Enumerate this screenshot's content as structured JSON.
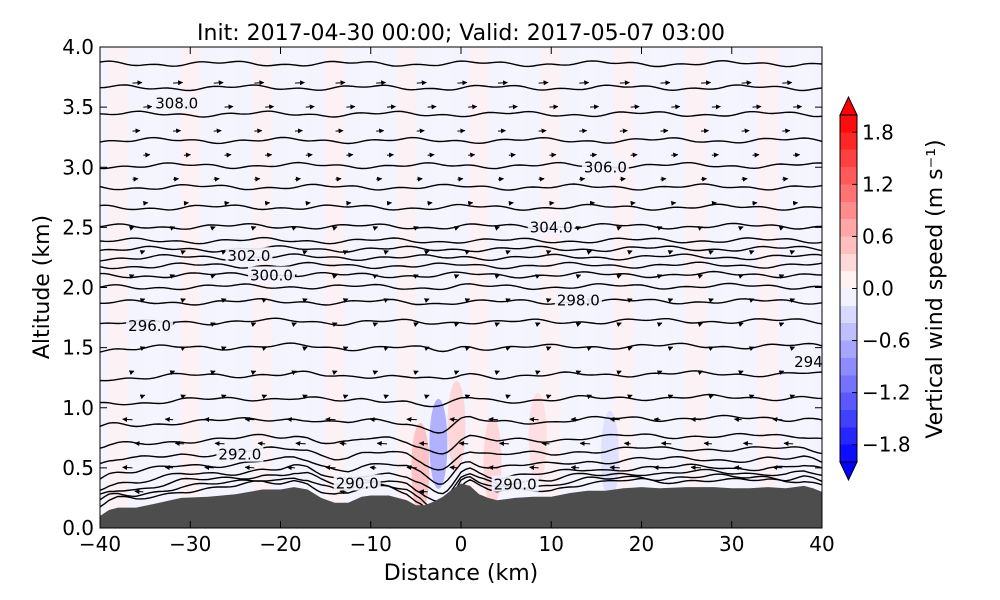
{
  "chart_data": {
    "type": "contour",
    "title": "Init: 2017-04-30 00:00; Valid: 2017-05-07 03:00",
    "xlabel": "Distance (km)",
    "ylabel": "Altitude (km)",
    "xlim": [
      -40,
      40
    ],
    "ylim": [
      0.0,
      4.0
    ],
    "x_ticks": [
      -40,
      -30,
      -20,
      -10,
      0,
      10,
      20,
      30,
      40
    ],
    "x_tick_labels": [
      "−40",
      "−30",
      "−20",
      "−10",
      "0",
      "10",
      "20",
      "30",
      "40"
    ],
    "y_ticks": [
      0.0,
      0.5,
      1.0,
      1.5,
      2.0,
      2.5,
      3.0,
      3.5,
      4.0
    ],
    "y_tick_labels": [
      "0.0",
      "0.5",
      "1.0",
      "1.5",
      "2.0",
      "2.5",
      "3.0",
      "3.5",
      "4.0"
    ],
    "filled_variable": "vertical wind speed",
    "colorbar": {
      "label": "Vertical wind speed (m s⁻¹)",
      "range": [
        -2.0,
        2.0
      ],
      "ticks": [
        1.8,
        1.2,
        0.6,
        0.0,
        -0.6,
        -1.2,
        -1.8
      ],
      "tick_labels": [
        "1.8",
        "1.2",
        "0.6",
        "0.0",
        "−0.6",
        "−1.2",
        "−1.8"
      ],
      "colormap": "bwr",
      "extend": "both",
      "low_color": "#0000ff",
      "high_color": "#ff0000"
    },
    "contour_labels": [
      {
        "text": "308.0",
        "x": -31.5,
        "y": 3.53
      },
      {
        "text": "306.0",
        "x": 16.0,
        "y": 3.0
      },
      {
        "text": "304.0",
        "x": 10.0,
        "y": 2.5
      },
      {
        "text": "302.0",
        "x": -23.5,
        "y": 2.26
      },
      {
        "text": "300.0",
        "x": -21.0,
        "y": 2.1
      },
      {
        "text": "298.0",
        "x": 13.0,
        "y": 1.89
      },
      {
        "text": "296.0",
        "x": -34.5,
        "y": 1.68
      },
      {
        "text": "294",
        "x": 38.5,
        "y": 1.38
      },
      {
        "text": "292.0",
        "x": -24.5,
        "y": 0.61
      },
      {
        "text": "290.0",
        "x": -11.5,
        "y": 0.37
      },
      {
        "text": "290.0",
        "x": 6.0,
        "y": 0.36
      }
    ],
    "terrain": {
      "color": "#4d4d4d",
      "x": [
        -40,
        -39,
        -38,
        -36,
        -34,
        -31,
        -28,
        -25,
        -22,
        -20,
        -18.5,
        -17,
        -15.5,
        -14,
        -12.5,
        -11,
        -10,
        -8,
        -6,
        -5,
        -4,
        -3,
        -2,
        -1,
        0,
        1,
        2,
        3,
        4,
        6,
        8,
        10,
        12,
        14,
        16,
        18,
        20,
        22,
        25,
        28,
        30,
        32,
        34,
        36,
        38,
        39,
        40
      ],
      "y": [
        0.1,
        0.15,
        0.17,
        0.17,
        0.2,
        0.25,
        0.26,
        0.28,
        0.32,
        0.32,
        0.34,
        0.32,
        0.25,
        0.21,
        0.21,
        0.26,
        0.27,
        0.27,
        0.23,
        0.19,
        0.19,
        0.22,
        0.26,
        0.32,
        0.37,
        0.35,
        0.28,
        0.25,
        0.23,
        0.25,
        0.26,
        0.26,
        0.29,
        0.31,
        0.31,
        0.33,
        0.34,
        0.33,
        0.34,
        0.34,
        0.33,
        0.33,
        0.34,
        0.33,
        0.35,
        0.33,
        0.3
      ]
    },
    "vertical_wind_anomalies": [
      {
        "x": -2.5,
        "y": 0.7,
        "value": -0.8
      },
      {
        "x": -4.5,
        "y": 0.5,
        "value": 0.6
      },
      {
        "x": -0.5,
        "y": 0.85,
        "value": 0.4
      },
      {
        "x": 3.5,
        "y": 0.55,
        "value": 0.4
      },
      {
        "x": 8.5,
        "y": 0.75,
        "value": 0.3
      },
      {
        "x": 16.5,
        "y": 0.6,
        "value": -0.3
      }
    ]
  }
}
